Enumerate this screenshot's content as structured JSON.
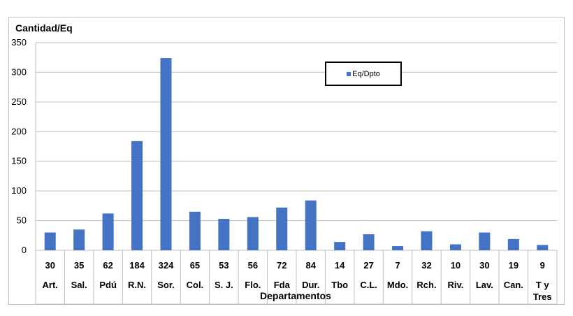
{
  "chart_data": {
    "type": "bar",
    "ylabel": "Cantidad/Eq",
    "xlabel": "Departamentos",
    "categories": [
      "Art.",
      "Sal.",
      "Pdú",
      "R.N.",
      "Sor.",
      "Col.",
      "S. J.",
      "Flo.",
      "Fda",
      "Dur.",
      "Tbo",
      "C.L.",
      "Mdo.",
      "Rch.",
      "Riv.",
      "Lav.",
      "Can.",
      "T y Tres"
    ],
    "series": [
      {
        "name": "Eq/Dpto",
        "values": [
          30,
          35,
          62,
          184,
          324,
          65,
          53,
          56,
          72,
          84,
          14,
          27,
          7,
          32,
          10,
          30,
          19,
          9
        ]
      }
    ],
    "ylim": [
      0,
      350
    ],
    "yticks": [
      0,
      50,
      100,
      150,
      200,
      250,
      300,
      350
    ],
    "grid": true,
    "legend_position": "top-right",
    "bar_color": "#4472c4"
  }
}
